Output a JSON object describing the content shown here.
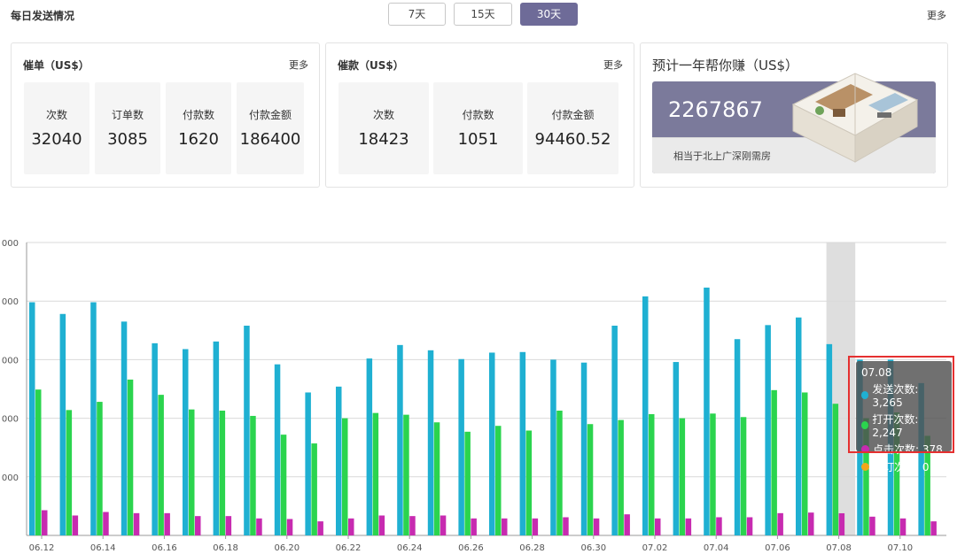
{
  "header": {
    "title": "每日发送情况",
    "ranges": [
      "7天",
      "15天",
      "30天"
    ],
    "active_range": "30天",
    "more": "更多"
  },
  "card_cuidan": {
    "title": "催单（US$）",
    "more": "更多",
    "stats": [
      {
        "label": "次数",
        "value": "32040"
      },
      {
        "label": "订单数",
        "value": "3085"
      },
      {
        "label": "付款数",
        "value": "1620"
      },
      {
        "label": "付款金额",
        "value": "186400"
      }
    ]
  },
  "card_cuikuan": {
    "title": "催款（US$）",
    "more": "更多",
    "stats": [
      {
        "label": "次数",
        "value": "18423"
      },
      {
        "label": "付款数",
        "value": "1051"
      },
      {
        "label": "付款金额",
        "value": "94460.52"
      }
    ]
  },
  "card_earn": {
    "title": "预计一年帮你赚（US$）",
    "value": "2267867",
    "note": "相当于北上广深刚需房"
  },
  "colors": {
    "accent": "#6e6b98",
    "send": "#1fb0d2",
    "open": "#2bd44e",
    "click": "#c72bb0",
    "unsub": "#f2a51a",
    "highlight": "#e53030"
  },
  "tooltip": {
    "date": "07.08",
    "rows": [
      {
        "label": "发送次数: 3,265",
        "color": "#1fb0d2"
      },
      {
        "label": "打开次数: 2,247",
        "color": "#2bd44e"
      },
      {
        "label": "点击次数: 378",
        "color": "#c72bb0"
      },
      {
        "label": "退订次数: 0",
        "color": "#f2a51a"
      }
    ]
  },
  "chart_data": {
    "type": "bar",
    "y_tick_labels": [
      "",
      "000",
      "000",
      "000",
      "000",
      "000"
    ],
    "ylim": [
      0,
      5000
    ],
    "x_tick_labels": [
      "06.12",
      "06.14",
      "06.16",
      "06.18",
      "06.20",
      "06.22",
      "06.24",
      "06.26",
      "06.28",
      "06.30",
      "07.02",
      "07.04",
      "07.06",
      "07.08",
      "07.10"
    ],
    "highlighted_category": "07.08",
    "categories": [
      "06.12",
      "06.13",
      "06.14",
      "06.15",
      "06.16",
      "06.17",
      "06.18",
      "06.19",
      "06.20",
      "06.21",
      "06.22",
      "06.23",
      "06.24",
      "06.25",
      "06.26",
      "06.27",
      "06.28",
      "06.29",
      "06.30",
      "07.01",
      "07.02",
      "07.03",
      "07.04",
      "07.05",
      "07.06",
      "07.07",
      "07.08",
      "07.09",
      "07.10",
      "07.11"
    ],
    "series": [
      {
        "name": "发送次数",
        "values": [
          3980,
          3780,
          3980,
          3650,
          3280,
          3180,
          3310,
          3580,
          2920,
          2440,
          2540,
          3020,
          3250,
          3160,
          3010,
          3120,
          3130,
          3000,
          2950,
          3580,
          4080,
          2960,
          4230,
          3350,
          3590,
          3720,
          3265,
          3000,
          3000,
          2600
        ]
      },
      {
        "name": "打开次数",
        "values": [
          2490,
          2140,
          2280,
          2660,
          2400,
          2150,
          2130,
          2040,
          1720,
          1570,
          2000,
          2090,
          2060,
          1930,
          1770,
          1870,
          1790,
          2130,
          1900,
          1970,
          2070,
          2000,
          2080,
          2020,
          2480,
          2440,
          2247,
          2000,
          2100,
          1700
        ]
      },
      {
        "name": "点击次数",
        "values": [
          430,
          340,
          400,
          380,
          380,
          330,
          330,
          290,
          280,
          240,
          290,
          340,
          330,
          340,
          290,
          290,
          290,
          310,
          290,
          360,
          290,
          290,
          310,
          310,
          380,
          390,
          378,
          320,
          290,
          240
        ]
      },
      {
        "name": "退订次数",
        "values": [
          0,
          0,
          0,
          0,
          0,
          0,
          0,
          0,
          0,
          0,
          0,
          0,
          0,
          0,
          0,
          0,
          0,
          0,
          0,
          0,
          0,
          0,
          0,
          0,
          0,
          0,
          0,
          0,
          0,
          0
        ]
      }
    ]
  }
}
